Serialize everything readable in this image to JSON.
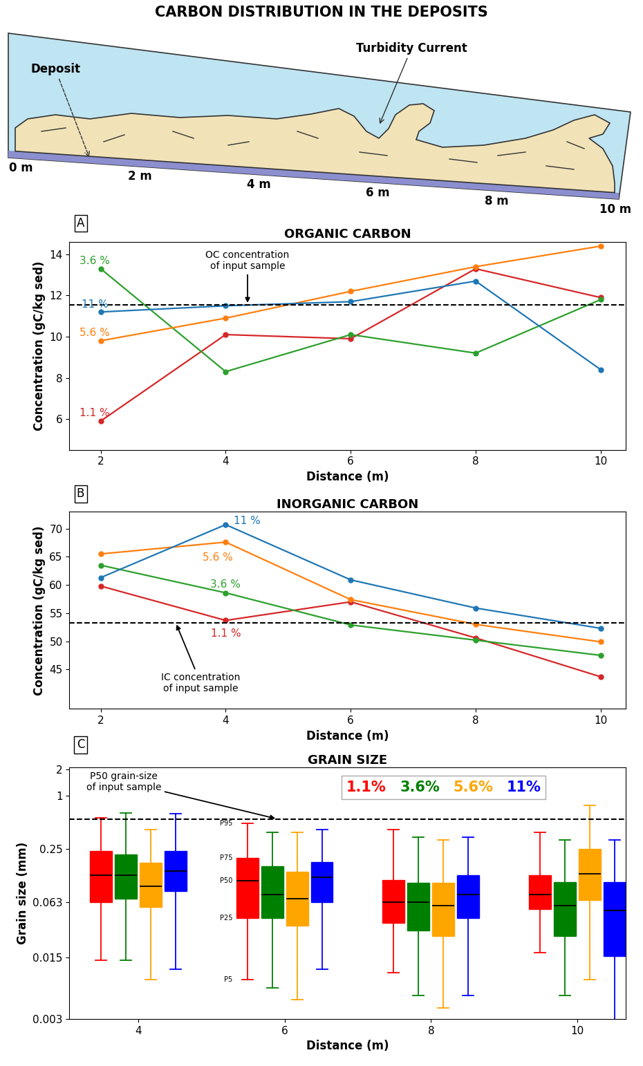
{
  "schematic": {
    "title": "CARBON DISTRIBUTION IN THE DEPOSITS",
    "labels": {
      "deposit": "Deposit",
      "current": "Turbidity Current"
    },
    "distance_marks": [
      "0 m",
      "2 m",
      "4 m",
      "6 m",
      "8 m",
      "10 m"
    ]
  },
  "chart_data": [
    {
      "type": "line",
      "panel_label": "A",
      "title": "ORGANIC CARBON",
      "x_label": "Distance (m)",
      "y_label": "Concentration (gC/kg sed)",
      "x": [
        2,
        4,
        6,
        8,
        10
      ],
      "marker": "o",
      "series": [
        {
          "name": "1.1 %",
          "color": "#d62728",
          "values": [
            5.9,
            10.1,
            9.9,
            13.3,
            11.9
          ]
        },
        {
          "name": "3.6 %",
          "color": "#2ca02c",
          "values": [
            13.3,
            8.3,
            10.1,
            9.2,
            11.8
          ]
        },
        {
          "name": "5.6 %",
          "color": "#ff7f0e",
          "values": [
            9.8,
            10.9,
            12.2,
            13.4,
            14.4
          ]
        },
        {
          "name": "11 %",
          "color": "#1f77b4",
          "values": [
            11.2,
            11.5,
            11.7,
            12.7,
            8.4
          ]
        }
      ],
      "reference_line": {
        "value": 11.55,
        "label": "OC concentration\nof input sample",
        "line_style": "dashed"
      },
      "xlim": [
        1.5,
        10.4
      ],
      "xticks": [
        2,
        4,
        6,
        8,
        10
      ],
      "ylim": [
        4.5,
        14.6
      ],
      "yticks": [
        6,
        8,
        10,
        12,
        14
      ]
    },
    {
      "type": "line",
      "panel_label": "B",
      "title": "INORGANIC CARBON",
      "x_label": "Distance (m)",
      "y_label": "Concentration (gC/kg sed)",
      "x": [
        2,
        4,
        6,
        8,
        10
      ],
      "marker": "o",
      "series": [
        {
          "name": "1.1 %",
          "color": "#d62728",
          "values": [
            59.8,
            53.7,
            57.0,
            50.6,
            43.7
          ]
        },
        {
          "name": "3.6 %",
          "color": "#2ca02c",
          "values": [
            63.5,
            58.6,
            52.9,
            50.2,
            47.5
          ]
        },
        {
          "name": "5.6 %",
          "color": "#ff7f0e",
          "values": [
            65.5,
            67.6,
            57.4,
            53.0,
            49.9
          ]
        },
        {
          "name": "11 %",
          "color": "#1f77b4",
          "values": [
            61.3,
            70.7,
            60.9,
            55.9,
            52.3
          ]
        }
      ],
      "reference_line": {
        "value": 53.3,
        "label": "IC concentration\nof input sample",
        "line_style": "dashed"
      },
      "xlim": [
        1.5,
        10.4
      ],
      "xticks": [
        2,
        4,
        6,
        8,
        10
      ],
      "ylim": [
        38,
        73
      ],
      "yticks": [
        45,
        50,
        55,
        60,
        65,
        70
      ]
    },
    {
      "type": "box",
      "panel_label": "C",
      "title": "GRAIN SIZE",
      "x_label": "Distance (m)",
      "y_label": "Grain size (mm)",
      "x": [
        4,
        6,
        8,
        10
      ],
      "log": "y",
      "legend": "upper right",
      "percentile_labels": [
        "P5",
        "P25",
        "P50",
        "P75",
        "P95"
      ],
      "series": [
        {
          "name": "1.1%",
          "color": "#ff0000",
          "boxes": [
            {
              "p5": 0.014,
              "p25": 0.063,
              "p50": 0.128,
              "p75": 0.24,
              "p95": 0.57
            },
            {
              "p5": 0.0084,
              "p25": 0.042,
              "p50": 0.11,
              "p75": 0.2,
              "p95": 0.49
            },
            {
              "p5": 0.01,
              "p25": 0.037,
              "p50": 0.063,
              "p75": 0.113,
              "p95": 0.42
            },
            {
              "p5": 0.017,
              "p25": 0.053,
              "p50": 0.077,
              "p75": 0.128,
              "p95": 0.39
            }
          ]
        },
        {
          "name": "3.6%",
          "color": "#008000",
          "boxes": [
            {
              "p5": 0.014,
              "p25": 0.069,
              "p50": 0.128,
              "p75": 0.22,
              "p95": 0.64
            },
            {
              "p5": 0.0068,
              "p25": 0.042,
              "p50": 0.077,
              "p75": 0.16,
              "p95": 0.39
            },
            {
              "p5": 0.0055,
              "p25": 0.03,
              "p50": 0.063,
              "p75": 0.105,
              "p95": 0.34
            },
            {
              "p5": 0.0055,
              "p25": 0.026,
              "p50": 0.058,
              "p75": 0.107,
              "p95": 0.32
            }
          ]
        },
        {
          "name": "5.6%",
          "color": "#ffa500",
          "boxes": [
            {
              "p5": 0.0084,
              "p25": 0.056,
              "p50": 0.095,
              "p75": 0.176,
              "p95": 0.42
            },
            {
              "p5": 0.005,
              "p25": 0.034,
              "p50": 0.069,
              "p75": 0.14,
              "p95": 0.39
            },
            {
              "p5": 0.004,
              "p25": 0.026,
              "p50": 0.058,
              "p75": 0.104,
              "p95": 0.32
            },
            {
              "p5": 0.0084,
              "p25": 0.066,
              "p50": 0.133,
              "p75": 0.25,
              "p95": 0.78
            }
          ]
        },
        {
          "name": "11%",
          "color": "#0000ff",
          "boxes": [
            {
              "p5": 0.011,
              "p25": 0.084,
              "p50": 0.142,
              "p75": 0.24,
              "p95": 0.63
            },
            {
              "p5": 0.011,
              "p25": 0.063,
              "p50": 0.12,
              "p75": 0.18,
              "p95": 0.42
            },
            {
              "p5": 0.0055,
              "p25": 0.042,
              "p50": 0.077,
              "p75": 0.128,
              "p95": 0.34
            },
            {
              "p5": 0.0028,
              "p25": 0.0155,
              "p50": 0.051,
              "p75": 0.107,
              "p95": 0.32
            }
          ]
        }
      ],
      "reference_line": {
        "value": 0.55,
        "label": "P50 grain-size\nof input sample",
        "line_style": "dashed"
      },
      "xlim": [
        3.06,
        10.66
      ],
      "xticks": [
        4,
        6,
        8,
        10
      ],
      "ylim": [
        0.003,
        2.1
      ],
      "yticks": [
        0.003,
        0.015,
        0.063,
        0.25,
        1,
        2
      ]
    }
  ]
}
